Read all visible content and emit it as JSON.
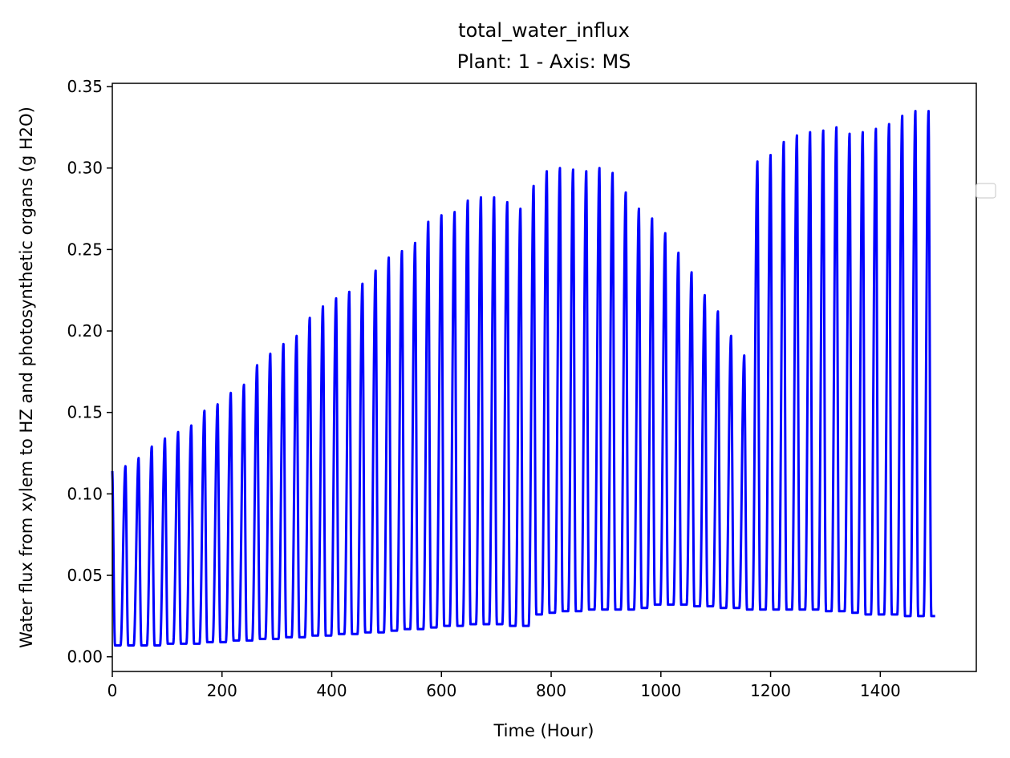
{
  "chart_data": {
    "type": "line",
    "title": "total_water_influx",
    "subtitle": "Plant: 1 - Axis: MS",
    "xlabel": "Time (Hour)",
    "ylabel": "Water flux from xylem to HZ and photosynthetic organs (g H2O)",
    "xlim": [
      0,
      1575
    ],
    "ylim": [
      -0.009,
      0.352
    ],
    "xticks": [
      0,
      200,
      400,
      600,
      800,
      1000,
      1200,
      1400
    ],
    "yticks": [
      0.0,
      0.05,
      0.1,
      0.15,
      0.2,
      0.25,
      0.3,
      0.35
    ],
    "xtick_labels": [
      "0",
      "200",
      "400",
      "600",
      "800",
      "1000",
      "1200",
      "1400"
    ],
    "ytick_labels": [
      "0.00",
      "0.05",
      "0.10",
      "0.15",
      "0.20",
      "0.25",
      "0.30",
      "0.35"
    ],
    "grid": false,
    "legend": "right",
    "series": [
      {
        "color": "#0000ff",
        "period_hours": 24,
        "daily_peak_hours": [
          0,
          24,
          48,
          72,
          96,
          120,
          144,
          168,
          192,
          216,
          240,
          264,
          288,
          312,
          336,
          360,
          384,
          408,
          432,
          456,
          480,
          504,
          528,
          552,
          576,
          600,
          624,
          648,
          672,
          696,
          720,
          744,
          768,
          792,
          816,
          840,
          864,
          888,
          912,
          936,
          960,
          984,
          1008,
          1032,
          1056,
          1080,
          1104,
          1128,
          1152,
          1176,
          1200,
          1224,
          1248,
          1272,
          1296,
          1320,
          1344,
          1368,
          1392,
          1416,
          1440,
          1464,
          1488
        ],
        "daily_peaks": [
          0.114,
          0.117,
          0.122,
          0.129,
          0.134,
          0.138,
          0.142,
          0.151,
          0.155,
          0.162,
          0.167,
          0.179,
          0.186,
          0.192,
          0.197,
          0.208,
          0.215,
          0.22,
          0.224,
          0.229,
          0.237,
          0.245,
          0.249,
          0.254,
          0.267,
          0.271,
          0.273,
          0.28,
          0.282,
          0.282,
          0.279,
          0.275,
          0.289,
          0.298,
          0.3,
          0.299,
          0.298,
          0.3,
          0.297,
          0.285,
          0.275,
          0.269,
          0.26,
          0.248,
          0.236,
          0.222,
          0.212,
          0.197,
          0.185,
          0.304,
          0.308,
          0.316,
          0.32,
          0.322,
          0.323,
          0.325,
          0.321,
          0.322,
          0.324,
          0.327,
          0.332,
          0.335,
          0.335
        ],
        "nightly_minimums": [
          0.007,
          0.007,
          0.007,
          0.007,
          0.008,
          0.008,
          0.008,
          0.009,
          0.009,
          0.01,
          0.01,
          0.011,
          0.011,
          0.012,
          0.012,
          0.013,
          0.013,
          0.014,
          0.014,
          0.015,
          0.015,
          0.016,
          0.017,
          0.017,
          0.018,
          0.019,
          0.019,
          0.02,
          0.02,
          0.02,
          0.019,
          0.019,
          0.026,
          0.027,
          0.028,
          0.028,
          0.029,
          0.029,
          0.029,
          0.029,
          0.03,
          0.032,
          0.032,
          0.032,
          0.031,
          0.031,
          0.03,
          0.03,
          0.029,
          0.029,
          0.029,
          0.029,
          0.029,
          0.029,
          0.028,
          0.028,
          0.027,
          0.026,
          0.026,
          0.026,
          0.025,
          0.025,
          0.025
        ],
        "x_end": 1500,
        "y_end": 0.025
      }
    ]
  }
}
